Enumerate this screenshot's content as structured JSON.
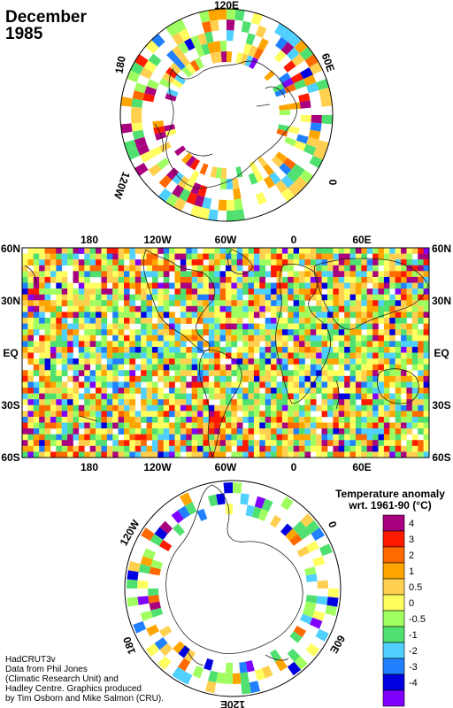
{
  "title": {
    "month": "December",
    "year": "1985"
  },
  "legend": {
    "title_line1": "Temperature anomaly",
    "title_line2": "wrt. 1961-90  (°C)",
    "bins": [
      {
        "label": "4",
        "color": "#a8007e"
      },
      {
        "label": "3",
        "color": "#ff1a00"
      },
      {
        "label": "2",
        "color": "#ff6a00"
      },
      {
        "label": "1",
        "color": "#ffa500"
      },
      {
        "label": "0.5",
        "color": "#ffd050"
      },
      {
        "label": "0",
        "color": "#ffff60"
      },
      {
        "label": "-0.5",
        "color": "#a0ff60"
      },
      {
        "label": "-1",
        "color": "#50e070"
      },
      {
        "label": "-2",
        "color": "#50d0ff"
      },
      {
        "label": "-3",
        "color": "#2080ff"
      },
      {
        "label": "-4",
        "color": "#0000e0"
      },
      {
        "label": "",
        "color": "#8000ff"
      }
    ]
  },
  "maps": {
    "north_polar": {
      "projection": "north polar stereographic",
      "labels": [
        "120E",
        "60E",
        "0",
        "120W",
        "180"
      ]
    },
    "global": {
      "projection": "equirectangular",
      "lon_labels": [
        "180",
        "120W",
        "60W",
        "0",
        "60E"
      ],
      "lat_labels": [
        "60N",
        "30N",
        "EQ",
        "30S",
        "60S"
      ]
    },
    "south_polar": {
      "projection": "south polar stereographic",
      "labels": [
        "120W",
        "0",
        "60E",
        "120E",
        "180"
      ]
    }
  },
  "credits": [
    "HadCRUT3v",
    "Data from Phil Jones",
    "(Climatic Research Unit) and",
    "Hadley Centre.  Graphics produced",
    "by Tim Osborn and Mike Salmon (CRU)."
  ]
}
